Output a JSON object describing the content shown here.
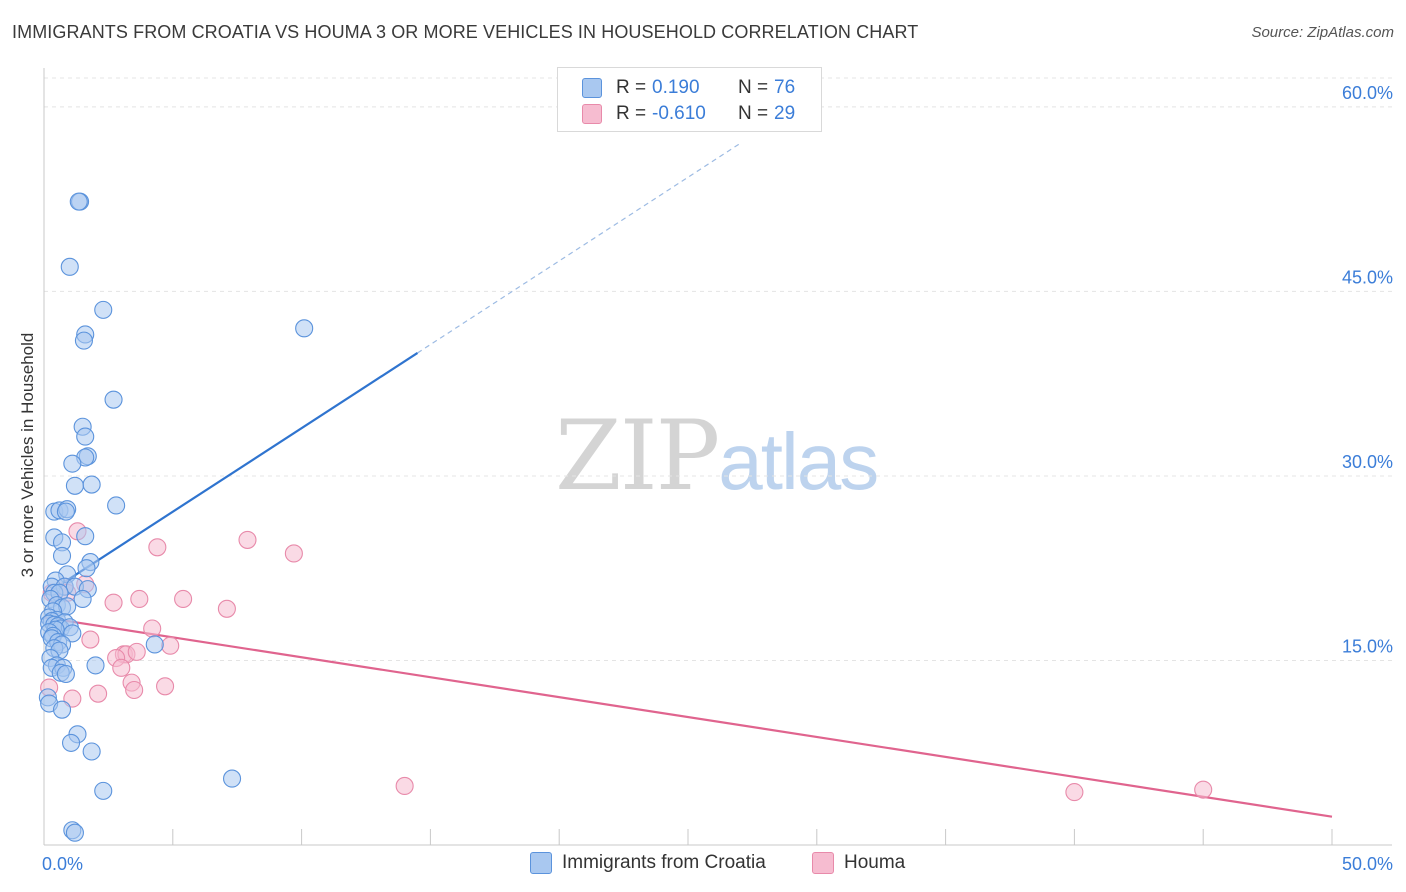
{
  "title": "IMMIGRANTS FROM CROATIA VS HOUMA 3 OR MORE VEHICLES IN HOUSEHOLD CORRELATION CHART",
  "source": "Source: ZipAtlas.com",
  "watermark": {
    "zip": "ZIP",
    "atlas": "atlas"
  },
  "legend_top": [
    {
      "r_label": "R =",
      "r_value": "0.190",
      "n_label": "N =",
      "n_value": "76"
    },
    {
      "r_label": "R =",
      "r_value": "-0.610",
      "n_label": "N =",
      "n_value": "29"
    }
  ],
  "legend_bottom": [
    "Immigrants from Croatia",
    "Houma"
  ],
  "colors": {
    "blue_fill": "#a9c8f0",
    "blue_stroke": "#5b93dc",
    "blue_line": "#2f74cf",
    "pink_fill": "#f6bcd0",
    "pink_stroke": "#e88aaa",
    "pink_line": "#e0648e",
    "grid": "#e4e4e4",
    "tick_label": "#3b7dd8"
  },
  "chart_data": {
    "type": "scatter",
    "title": "IMMIGRANTS FROM CROATIA VS HOUMA 3 OR MORE VEHICLES IN HOUSEHOLD CORRELATION CHART",
    "xlabel": "",
    "ylabel": "3 or more Vehicles in Household",
    "xlim": [
      0,
      50
    ],
    "ylim": [
      0,
      63
    ],
    "x_tick_labels": [
      "0.0%",
      "50.0%"
    ],
    "y_ticks": [
      15,
      30,
      45,
      60
    ],
    "y_tick_labels": [
      "15.0%",
      "30.0%",
      "45.0%",
      "60.0%"
    ],
    "grid": true,
    "legend_position": "top-center",
    "series": [
      {
        "name": "Immigrants from Croatia",
        "color": "blue",
        "r": 0.19,
        "n": 76,
        "trend": {
          "x0": 0,
          "y0": 20.3,
          "x1": 14.5,
          "y1": 40.0,
          "dashed_to_x": 27.0,
          "dashed_to_y": 57.0
        },
        "points": [
          [
            1.4,
            52.3
          ],
          [
            1.35,
            52.3
          ],
          [
            1.0,
            47.0
          ],
          [
            2.3,
            43.5
          ],
          [
            1.6,
            41.5
          ],
          [
            1.55,
            41.0
          ],
          [
            10.1,
            42.0
          ],
          [
            2.7,
            36.2
          ],
          [
            1.5,
            34.0
          ],
          [
            1.6,
            33.2
          ],
          [
            1.7,
            31.6
          ],
          [
            1.6,
            31.5
          ],
          [
            1.1,
            31.0
          ],
          [
            1.2,
            29.2
          ],
          [
            1.85,
            29.3
          ],
          [
            2.8,
            27.6
          ],
          [
            0.4,
            27.1
          ],
          [
            0.6,
            27.2
          ],
          [
            0.9,
            27.3
          ],
          [
            0.85,
            27.1
          ],
          [
            0.4,
            25.0
          ],
          [
            1.6,
            25.1
          ],
          [
            0.7,
            24.6
          ],
          [
            0.7,
            23.5
          ],
          [
            1.8,
            23.0
          ],
          [
            1.65,
            22.5
          ],
          [
            0.9,
            22.0
          ],
          [
            0.45,
            21.5
          ],
          [
            0.3,
            21.0
          ],
          [
            0.8,
            21.0
          ],
          [
            1.2,
            21.0
          ],
          [
            1.7,
            20.8
          ],
          [
            0.4,
            20.5
          ],
          [
            0.6,
            20.5
          ],
          [
            1.5,
            20.0
          ],
          [
            0.25,
            20.0
          ],
          [
            0.5,
            19.5
          ],
          [
            0.7,
            19.3
          ],
          [
            0.9,
            19.4
          ],
          [
            0.35,
            19.0
          ],
          [
            0.2,
            18.5
          ],
          [
            0.5,
            18.3
          ],
          [
            0.3,
            18.2
          ],
          [
            0.8,
            18.1
          ],
          [
            0.2,
            18.0
          ],
          [
            0.4,
            17.9
          ],
          [
            0.55,
            17.8
          ],
          [
            0.65,
            17.6
          ],
          [
            1.0,
            17.7
          ],
          [
            0.45,
            17.5
          ],
          [
            0.2,
            17.3
          ],
          [
            1.1,
            17.2
          ],
          [
            0.35,
            17.0
          ],
          [
            0.3,
            16.8
          ],
          [
            0.55,
            16.5
          ],
          [
            0.7,
            16.3
          ],
          [
            0.4,
            16.0
          ],
          [
            0.6,
            15.8
          ],
          [
            0.25,
            15.2
          ],
          [
            0.5,
            14.6
          ],
          [
            0.3,
            14.4
          ],
          [
            0.75,
            14.4
          ],
          [
            0.65,
            14.0
          ],
          [
            0.85,
            13.9
          ],
          [
            2.0,
            14.6
          ],
          [
            4.3,
            16.3
          ],
          [
            0.15,
            12.0
          ],
          [
            0.2,
            11.5
          ],
          [
            0.7,
            11.0
          ],
          [
            1.3,
            9.0
          ],
          [
            1.05,
            8.3
          ],
          [
            1.85,
            7.6
          ],
          [
            7.3,
            5.4
          ],
          [
            2.3,
            4.4
          ],
          [
            1.1,
            1.2
          ],
          [
            1.2,
            1.0
          ]
        ]
      },
      {
        "name": "Houma",
        "color": "pink",
        "r": -0.61,
        "n": 29,
        "trend": {
          "x0": 0,
          "y0": 18.5,
          "x1": 50.0,
          "y1": 2.3
        },
        "points": [
          [
            0.3,
            20.5
          ],
          [
            0.8,
            21.0
          ],
          [
            0.9,
            20.5
          ],
          [
            1.3,
            25.5
          ],
          [
            1.6,
            21.2
          ],
          [
            2.7,
            19.7
          ],
          [
            3.7,
            20.0
          ],
          [
            4.4,
            24.2
          ],
          [
            5.4,
            20.0
          ],
          [
            7.1,
            19.2
          ],
          [
            7.9,
            24.8
          ],
          [
            9.7,
            23.7
          ],
          [
            4.2,
            17.6
          ],
          [
            1.8,
            16.7
          ],
          [
            4.9,
            16.2
          ],
          [
            3.1,
            15.5
          ],
          [
            3.2,
            15.5
          ],
          [
            3.6,
            15.7
          ],
          [
            2.8,
            15.2
          ],
          [
            3.0,
            14.4
          ],
          [
            3.4,
            13.2
          ],
          [
            3.5,
            12.6
          ],
          [
            4.7,
            12.9
          ],
          [
            2.1,
            12.3
          ],
          [
            1.1,
            11.9
          ],
          [
            0.2,
            12.8
          ],
          [
            14.0,
            4.8
          ],
          [
            40.0,
            4.3
          ],
          [
            45.0,
            4.5
          ]
        ]
      }
    ]
  }
}
